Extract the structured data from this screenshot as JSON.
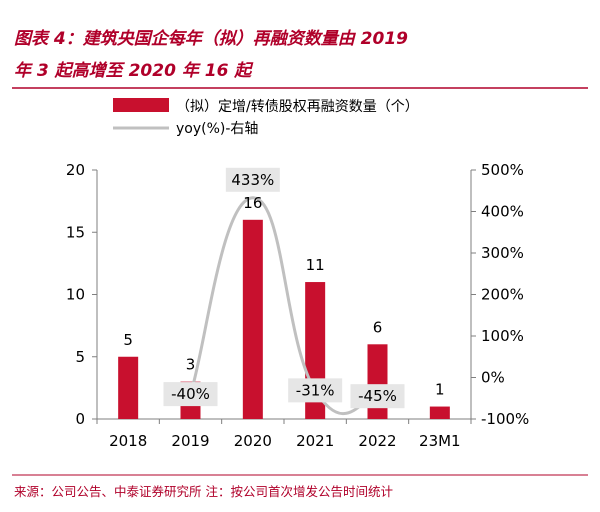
{
  "header": {
    "title_line1": "图表 4：建筑央国企每年（拟）再融资数量由 2019",
    "title_line2": "年 3 起高增至 2020 年 16 起"
  },
  "footer": {
    "source": "来源：公司公告、中泰证券研究所    注：按公司首次增发公告时间统计"
  },
  "colors": {
    "title": "#b0002a",
    "bar": "#c8102e",
    "line": "#c0c0c0",
    "label_bg": "#e6e6e6",
    "axis": "#7f7f7f",
    "divider": "#b0002a"
  },
  "chart_data": {
    "type": "bar",
    "categories": [
      "2018",
      "2019",
      "2020",
      "2021",
      "2022",
      "23M1"
    ],
    "series": [
      {
        "name": "（拟）定增/转债股权再融资数量（个）",
        "type": "bar",
        "axis": "left",
        "values": [
          5,
          3,
          16,
          11,
          6,
          1
        ],
        "labels": [
          "5",
          "3",
          "16",
          "11",
          "6",
          "1"
        ]
      },
      {
        "name": "yoy(%)-右轴",
        "type": "line",
        "axis": "right",
        "values": [
          null,
          -40,
          433,
          -31,
          -45,
          null
        ],
        "labels": [
          "",
          "-40%",
          "433%",
          "-31%",
          "-45%",
          ""
        ]
      }
    ],
    "y_left": {
      "min": 0,
      "max": 20,
      "ticks": [
        "0",
        "5",
        "10",
        "15",
        "20"
      ]
    },
    "y_right": {
      "min": -100,
      "max": 500,
      "ticks": [
        "-100%",
        "0%",
        "100%",
        "200%",
        "300%",
        "400%",
        "500%"
      ]
    },
    "legend_position": "top-left",
    "grid": false
  }
}
